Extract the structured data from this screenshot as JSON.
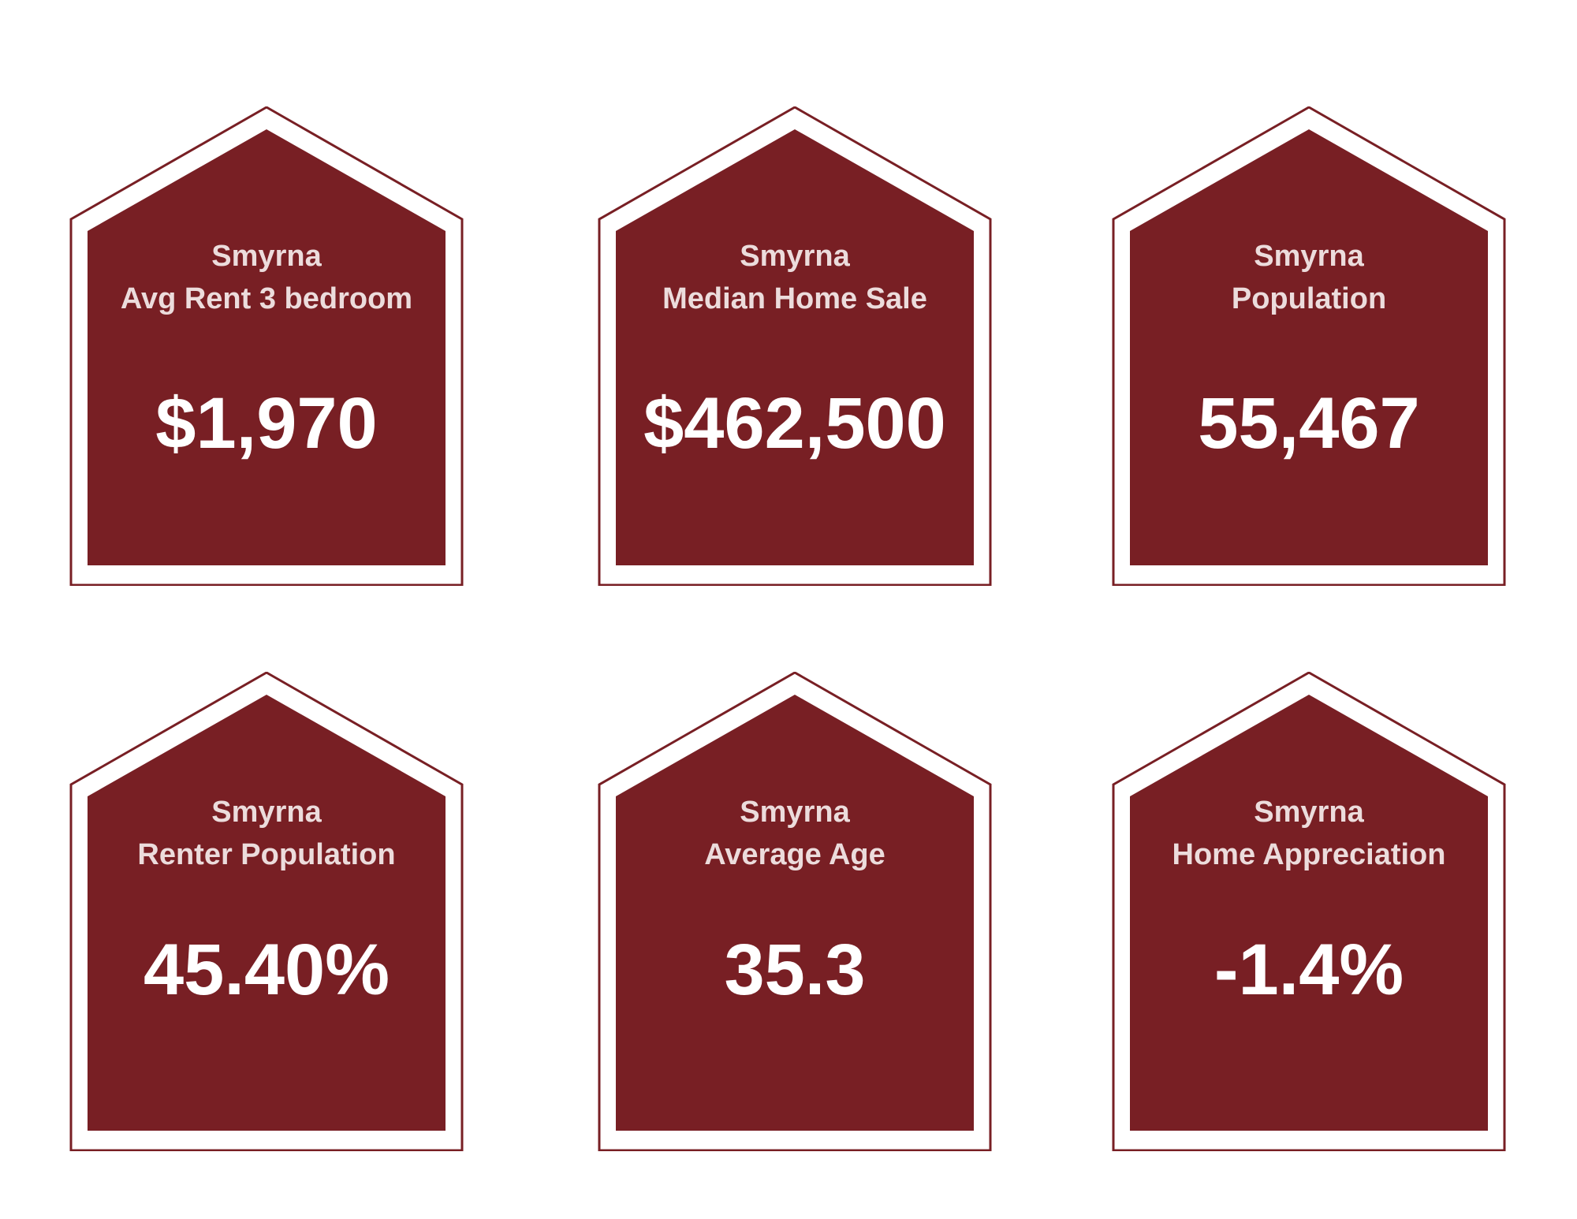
{
  "colors": {
    "card_fill": "#781f24",
    "card_border": "#781f24",
    "label_text": "#ecdcdc",
    "value_text": "#ffffff",
    "background": "#ffffff"
  },
  "cards": [
    {
      "city": "Smyrna",
      "label": "Avg Rent 3 bedroom",
      "value": "$1,970",
      "icon": "house-shape"
    },
    {
      "city": "Smyrna",
      "label": "Median Home Sale",
      "value": "$462,500",
      "icon": "house-shape"
    },
    {
      "city": "Smyrna",
      "label": "Population",
      "value": "55,467",
      "icon": "house-shape"
    },
    {
      "city": "Smyrna",
      "label": "Renter Population",
      "value": "45.40%",
      "icon": "house-shape"
    },
    {
      "city": "Smyrna",
      "label": "Average Age",
      "value": "35.3",
      "icon": "house-shape"
    },
    {
      "city": "Smyrna",
      "label": "Home Appreciation",
      "value": "-1.4%",
      "icon": "house-shape"
    }
  ]
}
